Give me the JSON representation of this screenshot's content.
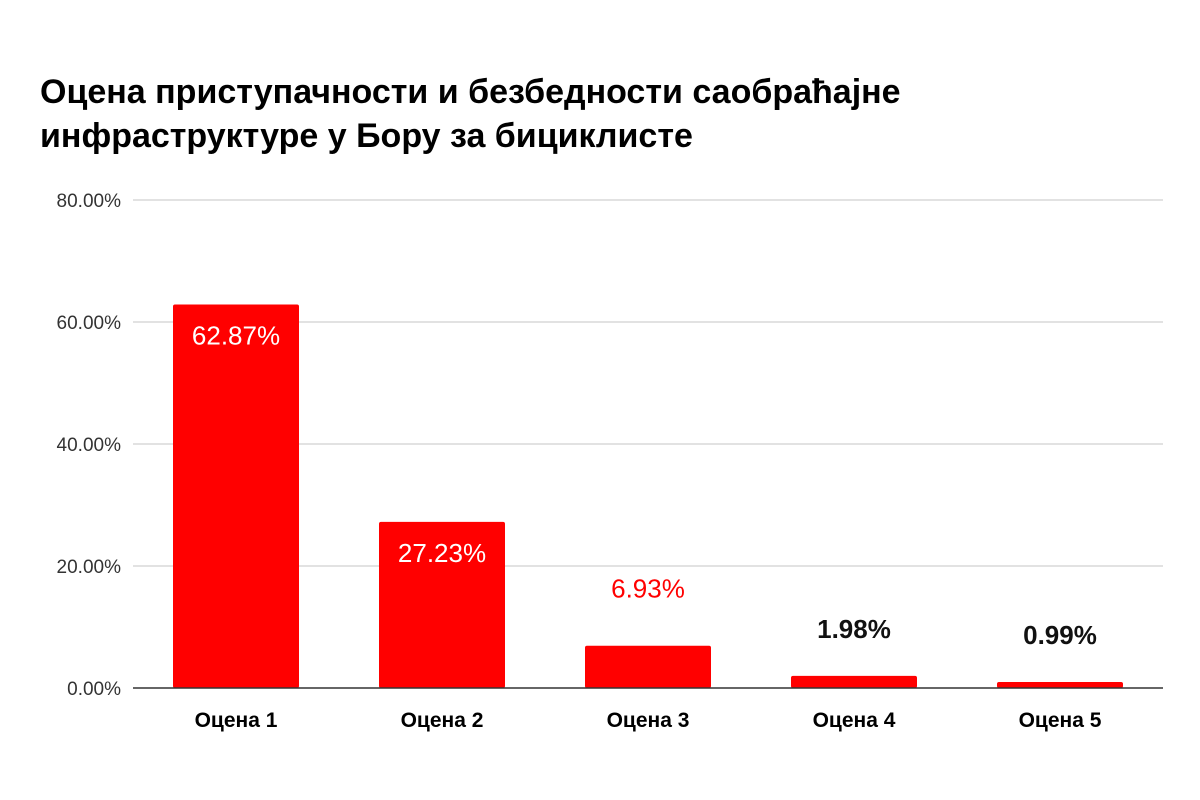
{
  "chart_data": {
    "type": "bar",
    "title": "Оцена приступачности и безбедности саобраћајне\nинфраструктуре у Бору за бициклисте",
    "categories": [
      "Оцена 1",
      "Оцена 2",
      "Оцена 3",
      "Оцена 4",
      "Оцена 5"
    ],
    "values": [
      62.87,
      27.23,
      6.93,
      1.98,
      0.99
    ],
    "data_labels": [
      "62.87%",
      "27.23%",
      "6.93%",
      "1.98%",
      "0.99%"
    ],
    "y_ticks": [
      "0.00%",
      "20.00%",
      "40.00%",
      "60.00%",
      "80.00%"
    ],
    "ylim": [
      0,
      80
    ],
    "grid": true,
    "legend": "none",
    "colors": {
      "bar": "#ff0000",
      "label_inside": "#ffffff",
      "label_outside_red": "#ff0000",
      "label_outside_dark": "#111111",
      "grid": "#d0d0d0",
      "axis": "#333333"
    }
  }
}
